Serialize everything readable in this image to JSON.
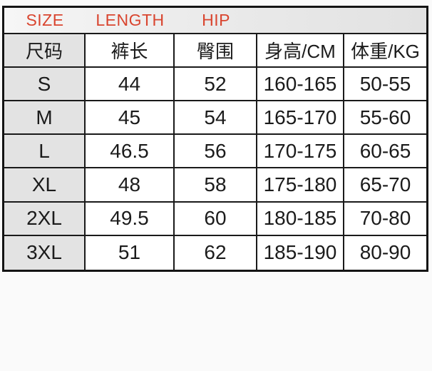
{
  "colors": {
    "accent_red": "#d9452f",
    "grid_line": "#1a1a1a",
    "first_column_bg": "#e3e3e3",
    "banner_bg": "#ebebeb",
    "cell_bg": "#ffffff",
    "page_bg": "#fafafa"
  },
  "chart_data": {
    "type": "table",
    "title": "SIZE LENGTH HIP",
    "banner_labels": [
      "SIZE",
      "LENGTH",
      "HIP"
    ],
    "columns": [
      "尺码",
      "裤长",
      "臀围",
      "身高/CM",
      "体重/KG"
    ],
    "rows": [
      [
        "S",
        "44",
        "52",
        "160-165",
        "50-55"
      ],
      [
        "M",
        "45",
        "54",
        "165-170",
        "55-60"
      ],
      [
        "L",
        "46.5",
        "56",
        "170-175",
        "60-65"
      ],
      [
        "XL",
        "48",
        "58",
        "175-180",
        "65-70"
      ],
      [
        "2XL",
        "49.5",
        "60",
        "180-185",
        "70-80"
      ],
      [
        "3XL",
        "51",
        "62",
        "185-190",
        "80-90"
      ]
    ],
    "layout": {
      "grid": "on",
      "header_row": true,
      "banner_row": true
    }
  }
}
